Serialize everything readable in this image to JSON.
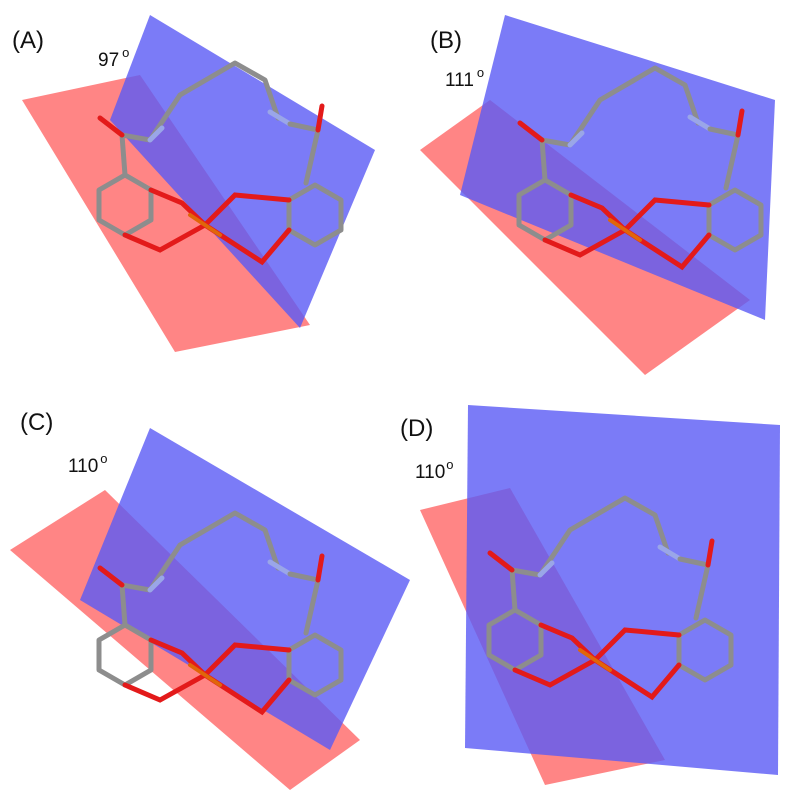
{
  "panels": [
    {
      "label": "(A)",
      "angle": "97",
      "degree": "o"
    },
    {
      "label": "(B)",
      "angle": "111",
      "degree": "o"
    },
    {
      "label": "(C)",
      "angle": "110",
      "degree": "o"
    },
    {
      "label": "(D)",
      "angle": "110",
      "degree": "o"
    }
  ]
}
